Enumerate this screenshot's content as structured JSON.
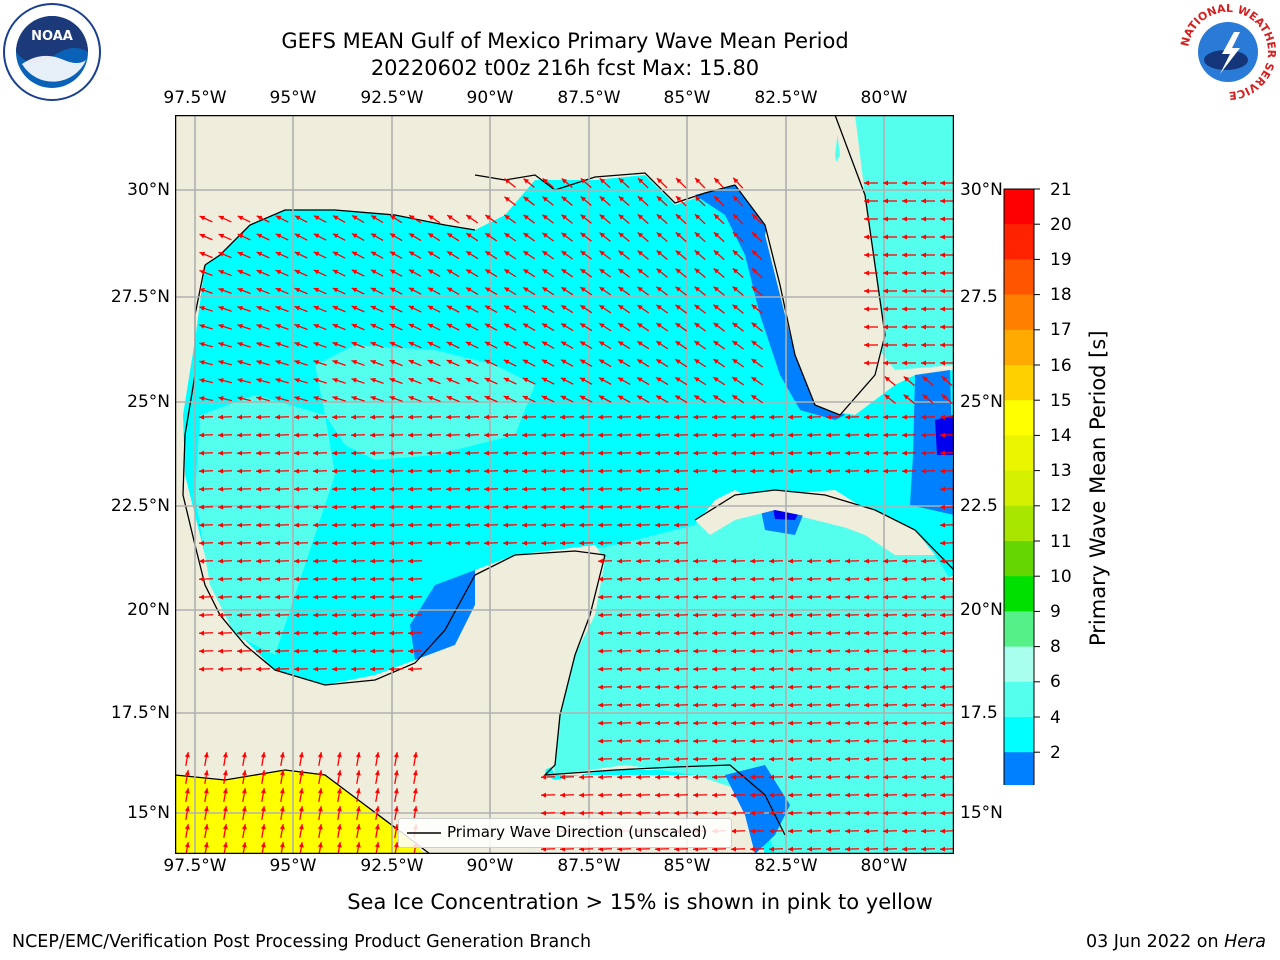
{
  "title": {
    "line1": "GEFS MEAN Gulf of Mexico Primary Wave Mean Period",
    "line2": "20220602 t00z 216h fcst   Max: 15.80"
  },
  "axes": {
    "lon_labels": [
      "97.5°W",
      "95°W",
      "92.5°W",
      "90°W",
      "87.5°W",
      "85°W",
      "82.5°W",
      "80°W"
    ],
    "lat_labels_left": [
      "30°N",
      "27.5°N",
      "25°N",
      "22.5°N",
      "20°N",
      "17.5°N",
      "15°N"
    ],
    "lat_labels_right": [
      "30°N",
      "27.5",
      "25°N",
      "22.5",
      "20°N",
      "17.5",
      "15°N"
    ]
  },
  "colorbar": {
    "label": "Primary Wave Mean Period [s]",
    "ticks": [
      "21",
      "20",
      "19",
      "18",
      "17",
      "16",
      "15",
      "14",
      "13",
      "12",
      "11",
      "10",
      "9",
      "8",
      "6",
      "4",
      "2"
    ],
    "colors": [
      "#ff0000",
      "#ff2200",
      "#ff5500",
      "#ff7f00",
      "#ffaa00",
      "#ffd000",
      "#ffff00",
      "#ecf500",
      "#d4f000",
      "#a8e600",
      "#66d600",
      "#00e000",
      "#55f088",
      "#a8ffee",
      "#55ffee",
      "#00ffff",
      "#0080ff"
    ],
    "extend_color": "#0000ee"
  },
  "legend": {
    "text": "Primary Wave Direction (unscaled)"
  },
  "caption": "Sea Ice Concentration > 15% is shown in pink to yellow",
  "footer": {
    "left": "NCEP/EMC/Verification Post Processing Product Generation Branch",
    "right_date": "03 Jun 2022 on ",
    "right_host": "Hera"
  },
  "logos": {
    "noaa": "NOAA",
    "nws_ring": "NATIONAL WEATHER SERVICE"
  },
  "colors": {
    "land": "#efeddc",
    "ocean_main": "#00ffff",
    "ocean_light": "#55ffee",
    "ocean_shelf": "#0080ff",
    "ocean_deep_shelf": "#0000ee",
    "yellow_region": "#ffff00",
    "arrow": "#ff0000"
  }
}
